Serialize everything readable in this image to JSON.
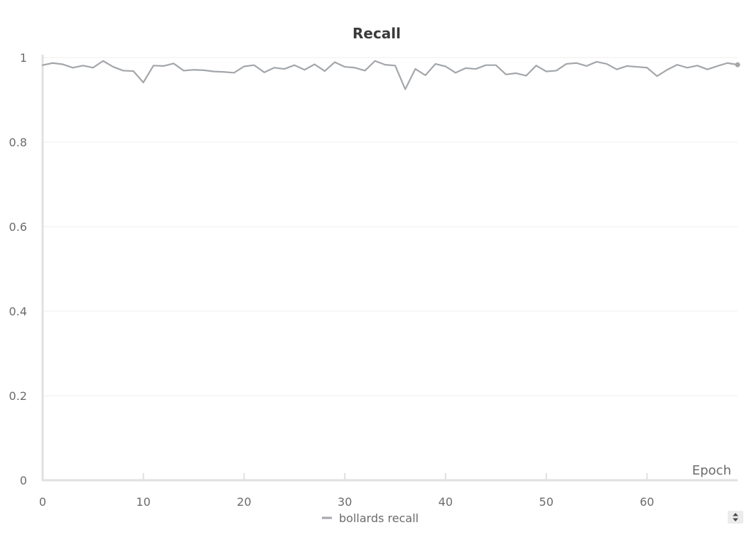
{
  "chart_data": {
    "type": "line",
    "title": "Recall",
    "xlabel": "Epoch",
    "ylabel": "",
    "xlim": [
      0,
      69
    ],
    "ylim": [
      0,
      1
    ],
    "x_ticks": [
      0,
      10,
      20,
      30,
      40,
      50,
      60
    ],
    "y_ticks": [
      0,
      0.2,
      0.4,
      0.6,
      0.8,
      1
    ],
    "y_tick_labels": [
      "0",
      "0.2",
      "0.4",
      "0.6",
      "0.8",
      "1"
    ],
    "grid": true,
    "legend_position": "bottom-center",
    "series": [
      {
        "name": "bollards recall",
        "color": "#a3a6aa",
        "x": [
          0,
          1,
          2,
          3,
          4,
          5,
          6,
          7,
          8,
          9,
          10,
          11,
          12,
          13,
          14,
          15,
          16,
          17,
          18,
          19,
          20,
          21,
          22,
          23,
          24,
          25,
          26,
          27,
          28,
          29,
          30,
          31,
          32,
          33,
          34,
          35,
          36,
          37,
          38,
          39,
          40,
          41,
          42,
          43,
          44,
          45,
          46,
          47,
          48,
          49,
          50,
          51,
          52,
          53,
          54,
          55,
          56,
          57,
          58,
          59,
          60,
          61,
          62,
          63,
          64,
          65,
          66,
          67,
          68,
          69
        ],
        "values": [
          0.982,
          0.987,
          0.984,
          0.976,
          0.981,
          0.976,
          0.992,
          0.978,
          0.969,
          0.968,
          0.941,
          0.981,
          0.98,
          0.986,
          0.969,
          0.971,
          0.97,
          0.967,
          0.966,
          0.964,
          0.979,
          0.982,
          0.965,
          0.976,
          0.973,
          0.982,
          0.971,
          0.984,
          0.968,
          0.989,
          0.978,
          0.976,
          0.969,
          0.992,
          0.983,
          0.981,
          0.925,
          0.973,
          0.958,
          0.985,
          0.979,
          0.964,
          0.975,
          0.973,
          0.982,
          0.982,
          0.96,
          0.963,
          0.957,
          0.981,
          0.967,
          0.969,
          0.985,
          0.987,
          0.98,
          0.99,
          0.985,
          0.972,
          0.98,
          0.978,
          0.976,
          0.956,
          0.971,
          0.983,
          0.976,
          0.981,
          0.972,
          0.98,
          0.987,
          0.983
        ]
      }
    ]
  },
  "controls": {
    "zoom_icon": "up-down-chevron-icon"
  }
}
